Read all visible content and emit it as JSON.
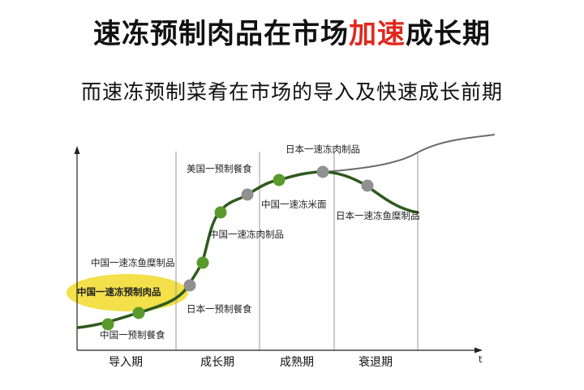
{
  "title": {
    "part1": "速冻预制肉品在市场",
    "highlight": "加速",
    "part2": "成长期"
  },
  "subtitle": "而速冻预制菜肴在市场的导入及快速成长前期",
  "colors": {
    "highlight": "#e0281e",
    "china_point": "#5a9a2c",
    "foreign_point": "#909090",
    "curve": "#2f5a1e",
    "ellipse": "#f3e04a"
  },
  "axis": {
    "t_label": "t"
  },
  "stages": [
    {
      "name": "导入期"
    },
    {
      "name": "成长期"
    },
    {
      "name": "成熟期"
    },
    {
      "name": "衰退期"
    }
  ],
  "points": [
    {
      "label": "中国一预制餐食",
      "kind": "china"
    },
    {
      "label": "中国一速冻预制肉品",
      "kind": "china",
      "highlighted": true
    },
    {
      "label": "日本一预制餐食",
      "kind": "foreign"
    },
    {
      "label": "中国一速冻鱼糜制品",
      "kind": "china"
    },
    {
      "label": "中国一速冻肉制品",
      "kind": "china"
    },
    {
      "label": "美国一预制餐食",
      "kind": "foreign"
    },
    {
      "label": "中国一速冻米面",
      "kind": "china"
    },
    {
      "label": "日本一速冻肉制品",
      "kind": "foreign"
    },
    {
      "label": "日本一速冻鱼糜制品",
      "kind": "foreign"
    }
  ]
}
